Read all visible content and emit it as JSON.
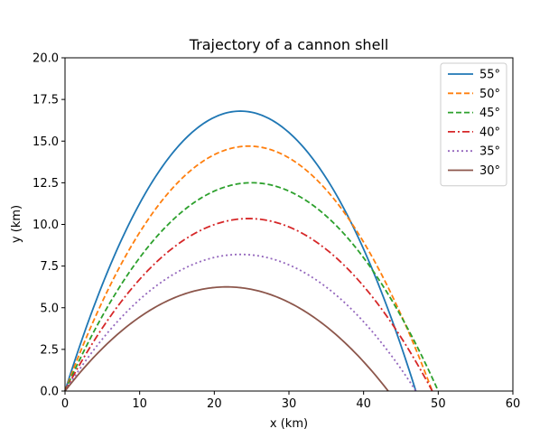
{
  "chart_data": {
    "type": "line",
    "title": "Trajectory of a cannon shell",
    "xlabel": "x (km)",
    "ylabel": "y (km)",
    "xlim": [
      0,
      60
    ],
    "ylim": [
      0,
      20
    ],
    "xticks": [
      "0",
      "10",
      "20",
      "30",
      "40",
      "50",
      "60"
    ],
    "yticks": [
      "0.0",
      "2.5",
      "5.0",
      "7.5",
      "10.0",
      "12.5",
      "15.0",
      "17.5",
      "20.0"
    ],
    "grid": false,
    "legend_position": "top-right",
    "series": [
      {
        "name": "55°",
        "color": "#1f77b4",
        "dash": "solid",
        "range_km": 47.0,
        "peak_x_km": 23.5,
        "peak_y_km": 16.8
      },
      {
        "name": "50°",
        "color": "#ff7f0e",
        "dash": "dashed",
        "range_km": 49.2,
        "peak_x_km": 24.6,
        "peak_y_km": 14.7
      },
      {
        "name": "45°",
        "color": "#2ca02c",
        "dash": "dashed",
        "range_km": 50.0,
        "peak_x_km": 25.0,
        "peak_y_km": 12.5
      },
      {
        "name": "40°",
        "color": "#d62728",
        "dash": "dashdot",
        "range_km": 49.2,
        "peak_x_km": 24.6,
        "peak_y_km": 10.35
      },
      {
        "name": "35°",
        "color": "#9467bd",
        "dash": "dotted",
        "range_km": 47.0,
        "peak_x_km": 23.5,
        "peak_y_km": 8.2
      },
      {
        "name": "30°",
        "color": "#8c564b",
        "dash": "solid",
        "range_km": 43.3,
        "peak_x_km": 21.65,
        "peak_y_km": 6.25
      }
    ]
  }
}
